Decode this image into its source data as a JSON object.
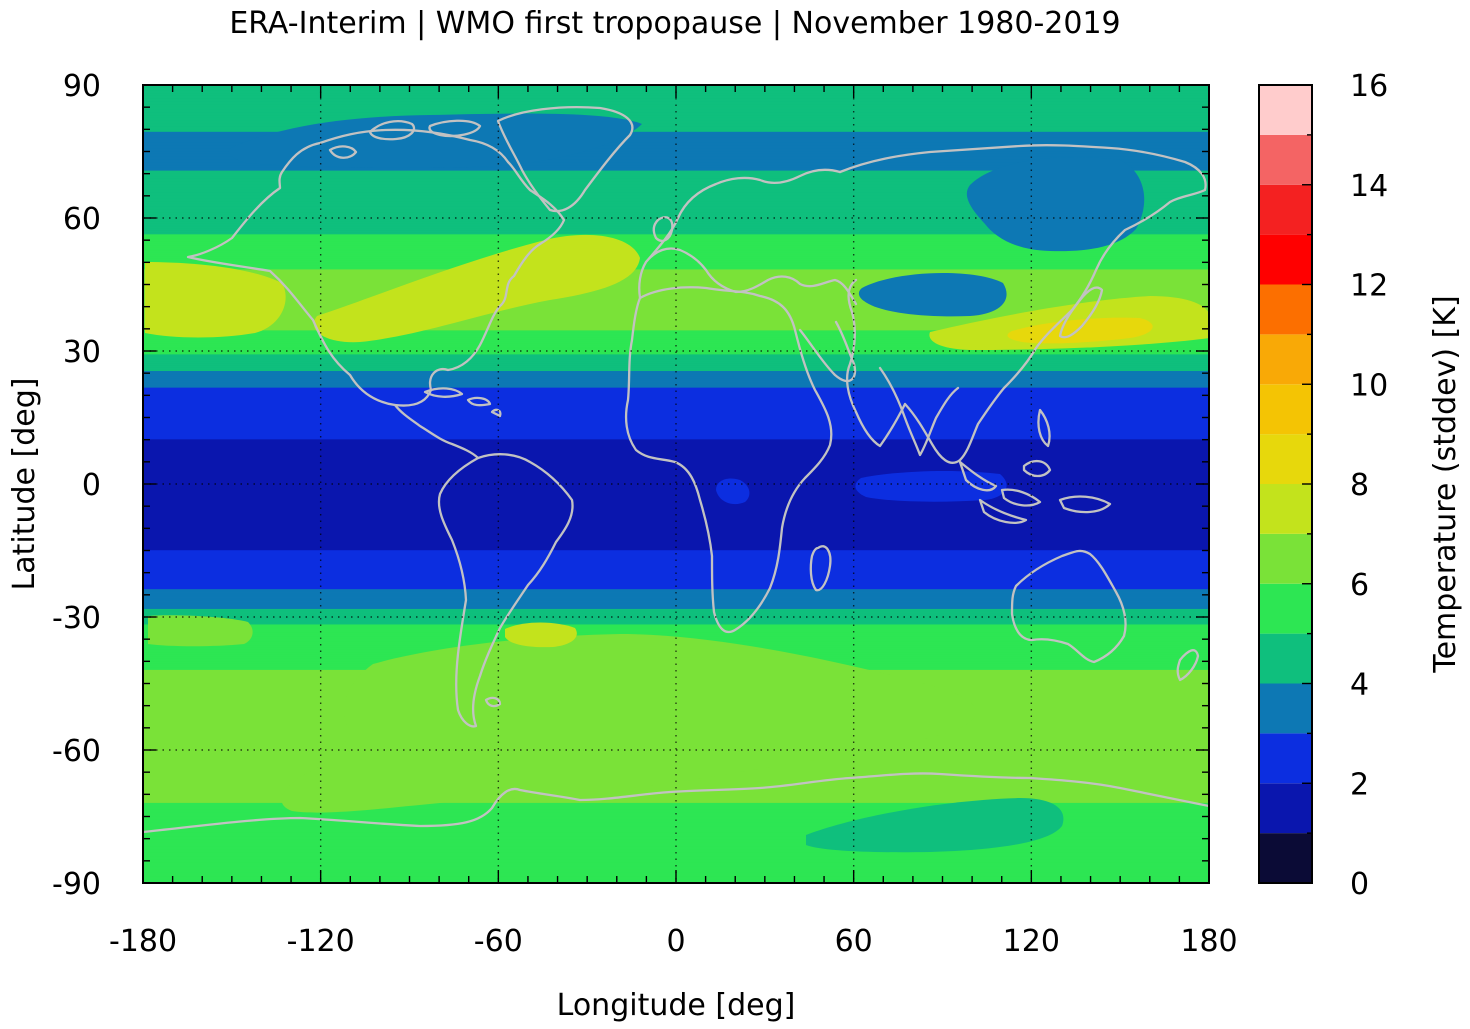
{
  "chart_data": {
    "type": "heatmap",
    "title": "ERA-Interim | WMO first tropopause | November 1980-2019",
    "xlabel": "Longitude [deg]",
    "ylabel": "Latitude [deg]",
    "xlim": [
      -180,
      180
    ],
    "ylim": [
      -90,
      90
    ],
    "x_ticks": [
      "-180",
      "-120",
      "-60",
      "0",
      "60",
      "120",
      "180"
    ],
    "y_ticks": [
      "90",
      "60",
      "30",
      "0",
      "-30",
      "-60",
      "-90"
    ],
    "grid": true,
    "colorbar": {
      "label": "Temperature (stddev) [K]",
      "range": [
        0,
        16
      ],
      "tick_labels": [
        "0",
        "2",
        "4",
        "6",
        "8",
        "10",
        "12",
        "14",
        "16"
      ],
      "levels": [
        {
          "from": 0,
          "to": 1,
          "color": "#0b0b36"
        },
        {
          "from": 1,
          "to": 2,
          "color": "#0a16ae"
        },
        {
          "from": 2,
          "to": 3,
          "color": "#0c2ee0"
        },
        {
          "from": 3,
          "to": 4,
          "color": "#0d78b4"
        },
        {
          "from": 4,
          "to": 5,
          "color": "#0fbf7d"
        },
        {
          "from": 5,
          "to": 6,
          "color": "#2de653"
        },
        {
          "from": 6,
          "to": 7,
          "color": "#7ae238"
        },
        {
          "from": 7,
          "to": 8,
          "color": "#c3e31c"
        },
        {
          "from": 8,
          "to": 9,
          "color": "#e7d80c"
        },
        {
          "from": 9,
          "to": 10,
          "color": "#f4c404"
        },
        {
          "from": 10,
          "to": 11,
          "color": "#f9a906"
        },
        {
          "from": 11,
          "to": 12,
          "color": "#fc6f00"
        },
        {
          "from": 12,
          "to": 13,
          "color": "#ff0000"
        },
        {
          "from": 13,
          "to": 14,
          "color": "#f42121"
        },
        {
          "from": 14,
          "to": 15,
          "color": "#f46464"
        },
        {
          "from": 15,
          "to": 16,
          "color": "#ffcccc"
        }
      ]
    },
    "field_by_latitude": [
      {
        "lat": 90,
        "value": 4.5
      },
      {
        "lat": 75,
        "value": 3.8
      },
      {
        "lat": 60,
        "value": 4.5
      },
      {
        "lat": 50,
        "value": 5.8
      },
      {
        "lat": 40,
        "value": 7.0
      },
      {
        "lat": 30,
        "value": 5.2
      },
      {
        "lat": 20,
        "value": 2.6
      },
      {
        "lat": 10,
        "value": 2.0
      },
      {
        "lat": 0,
        "value": 1.6
      },
      {
        "lat": -10,
        "value": 1.7
      },
      {
        "lat": -20,
        "value": 2.3
      },
      {
        "lat": -27,
        "value": 3.6
      },
      {
        "lat": -33,
        "value": 5.4
      },
      {
        "lat": -45,
        "value": 6.2
      },
      {
        "lat": -60,
        "value": 6.4
      },
      {
        "lat": -72,
        "value": 6.0
      },
      {
        "lat": -90,
        "value": 5.6
      }
    ]
  }
}
